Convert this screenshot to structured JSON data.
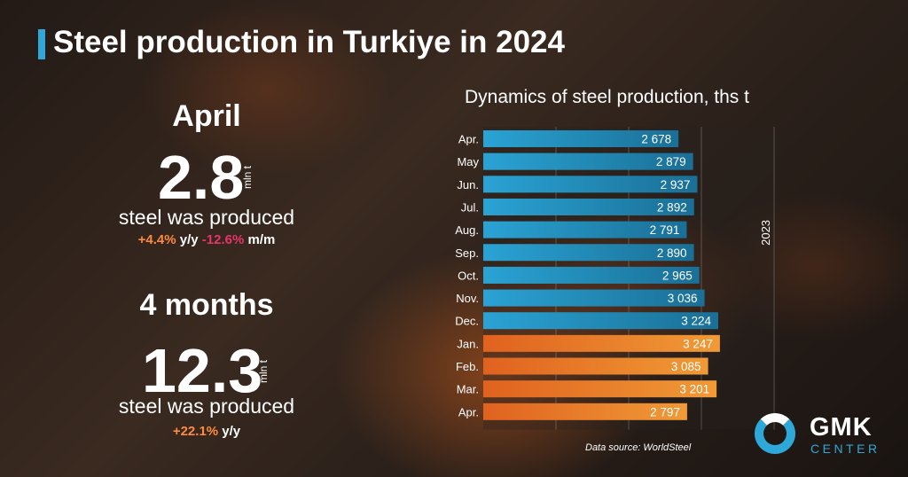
{
  "header": {
    "title": "Steel production in Turkiye in 2024"
  },
  "monthly": {
    "period": "April",
    "value": "2.8",
    "unit": "mln t",
    "caption": "steel was produced",
    "yoy": "+4.4%",
    "yoy_suffix": "y/y",
    "mom": "-12.6%",
    "mom_suffix": "m/m"
  },
  "cumulative": {
    "period": "4 months",
    "value": "12.3",
    "unit": "mln t",
    "caption": "steel was produced",
    "yoy": "+22.1%",
    "yoy_suffix": "y/y"
  },
  "chart_data": {
    "type": "bar",
    "orientation": "horizontal",
    "title": "Dynamics of steel production, ths t",
    "categories": [
      "Apr.",
      "May",
      "Jun.",
      "Jul.",
      "Aug.",
      "Sep.",
      "Oct.",
      "Nov.",
      "Dec.",
      "Jan.",
      "Feb.",
      "Mar.",
      "Apr."
    ],
    "values": [
      2678,
      2879,
      2937,
      2892,
      2791,
      2890,
      2965,
      3036,
      3224,
      3247,
      3085,
      3201,
      2797
    ],
    "value_labels": [
      "2 678",
      "2 879",
      "2 937",
      "2 892",
      "2 791",
      "2 890",
      "2 965",
      "3 036",
      "3 224",
      "3 247",
      "3 085",
      "3 201",
      "2 797"
    ],
    "group_label": "2023",
    "colors": {
      "2023": "#1f8fbf",
      "2024": "#e8832a"
    },
    "source": "Data source: WorldSteel"
  },
  "logo": {
    "name": "GMK",
    "sub": "CENTER"
  },
  "colors": {
    "accent": "#2ea8d8",
    "positive": "#ff8a3d",
    "negative": "#e8336b"
  }
}
